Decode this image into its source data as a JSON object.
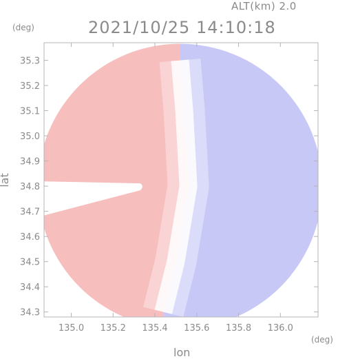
{
  "header": {
    "altitude_label": "ALT(km) 2.0",
    "timestamp": "2021/10/25 14:10:18"
  },
  "chart_data": {
    "type": "heatmap",
    "title": "2021/10/25 14:10:18",
    "xlabel": "lon",
    "ylabel": "lat",
    "x_unit": "(deg)",
    "y_unit": "(deg)",
    "xlim": [
      134.87,
      136.18
    ],
    "ylim": [
      34.28,
      35.37
    ],
    "x_ticks": [
      135.0,
      135.2,
      135.4,
      135.6,
      135.8,
      136.0
    ],
    "x_tick_labels": [
      "135.0",
      "135.2",
      "135.4",
      "135.6",
      "135.8",
      "136.0"
    ],
    "y_ticks": [
      34.3,
      34.4,
      34.5,
      34.6,
      34.7,
      34.8,
      34.9,
      35.0,
      35.1,
      35.2,
      35.3
    ],
    "y_tick_labels": [
      "34.3",
      "34.4",
      "34.5",
      "34.6",
      "34.7",
      "34.8",
      "34.9",
      "35.0",
      "35.1",
      "35.2",
      "35.3"
    ],
    "colors": {
      "positive": "#f6b3b3",
      "zero": "#ffffff",
      "negative": "#9a9af0",
      "axis": "#b4b4b4",
      "text": "#8a8a8a"
    },
    "field": {
      "radar_center": [
        135.52,
        34.8
      ],
      "radius_deg_lon": 0.68,
      "zero_line_lon": [
        [
          34.3,
          135.44
        ],
        [
          34.5,
          135.5
        ],
        [
          34.8,
          135.56
        ],
        [
          35.1,
          135.54
        ],
        [
          35.3,
          135.52
        ]
      ],
      "max_positive_region": "west",
      "max_negative_region": "east"
    }
  }
}
